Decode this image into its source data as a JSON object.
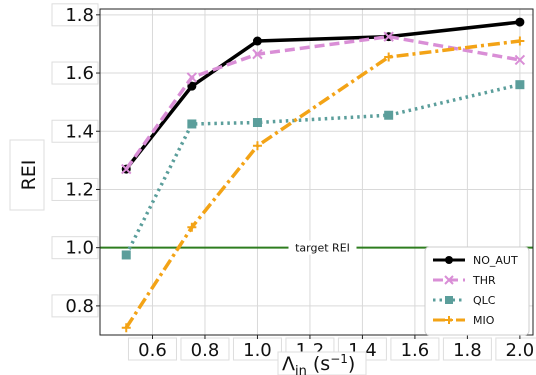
{
  "chart_data": {
    "type": "line",
    "title": "",
    "xlabel": "Λin (s⁻¹)",
    "xlabel_main": "Λ",
    "xlabel_sub": "in",
    "xlabel_unit": " (s",
    "xlabel_exp": "−1",
    "xlabel_close": ")",
    "ylabel": "REI",
    "xlim": [
      0.4,
      2.05
    ],
    "ylim": [
      0.7,
      1.82
    ],
    "x_ticks": [
      {
        "value": 0.6,
        "label": "0.6"
      },
      {
        "value": 0.8,
        "label": "0.8"
      },
      {
        "value": 1.0,
        "label": "1.0"
      },
      {
        "value": 1.2,
        "label": "1.2"
      },
      {
        "value": 1.4,
        "label": "1.4"
      },
      {
        "value": 1.6,
        "label": "1.6"
      },
      {
        "value": 1.8,
        "label": "1.8"
      },
      {
        "value": 2.0,
        "label": "2.0"
      }
    ],
    "y_ticks": [
      {
        "value": 0.8,
        "label": "0.8"
      },
      {
        "value": 1.0,
        "label": "1.0"
      },
      {
        "value": 1.2,
        "label": "1.2"
      },
      {
        "value": 1.4,
        "label": "1.4"
      },
      {
        "value": 1.6,
        "label": "1.6"
      },
      {
        "value": 1.8,
        "label": "1.8"
      }
    ],
    "grid": true,
    "legend_position": "bottom-right",
    "reference_line": {
      "y": 1.0,
      "label": "target REI",
      "color": "#2e7d1f"
    },
    "series": [
      {
        "name": "NO_AUT",
        "color": "#000000",
        "dash": "solid",
        "marker": "circle",
        "x": [
          0.5,
          0.75,
          1.0,
          1.5,
          2.0
        ],
        "y": [
          1.27,
          1.555,
          1.71,
          1.725,
          1.775
        ]
      },
      {
        "name": "THR",
        "color": "#d98ed6",
        "dash": "dashed",
        "marker": "x",
        "x": [
          0.5,
          0.75,
          1.0,
          1.5,
          2.0
        ],
        "y": [
          1.27,
          1.585,
          1.665,
          1.725,
          1.645
        ]
      },
      {
        "name": "QLC",
        "color": "#5b9e9b",
        "dash": "dotted",
        "marker": "square",
        "x": [
          0.5,
          0.75,
          1.0,
          1.5,
          2.0
        ],
        "y": [
          0.975,
          1.425,
          1.43,
          1.455,
          1.56
        ]
      },
      {
        "name": "MIO",
        "color": "#f3a316",
        "dash": "dashdot",
        "marker": "plus",
        "x": [
          0.5,
          0.75,
          1.0,
          1.5,
          2.0
        ],
        "y": [
          0.725,
          1.07,
          1.35,
          1.655,
          1.71
        ]
      }
    ]
  }
}
